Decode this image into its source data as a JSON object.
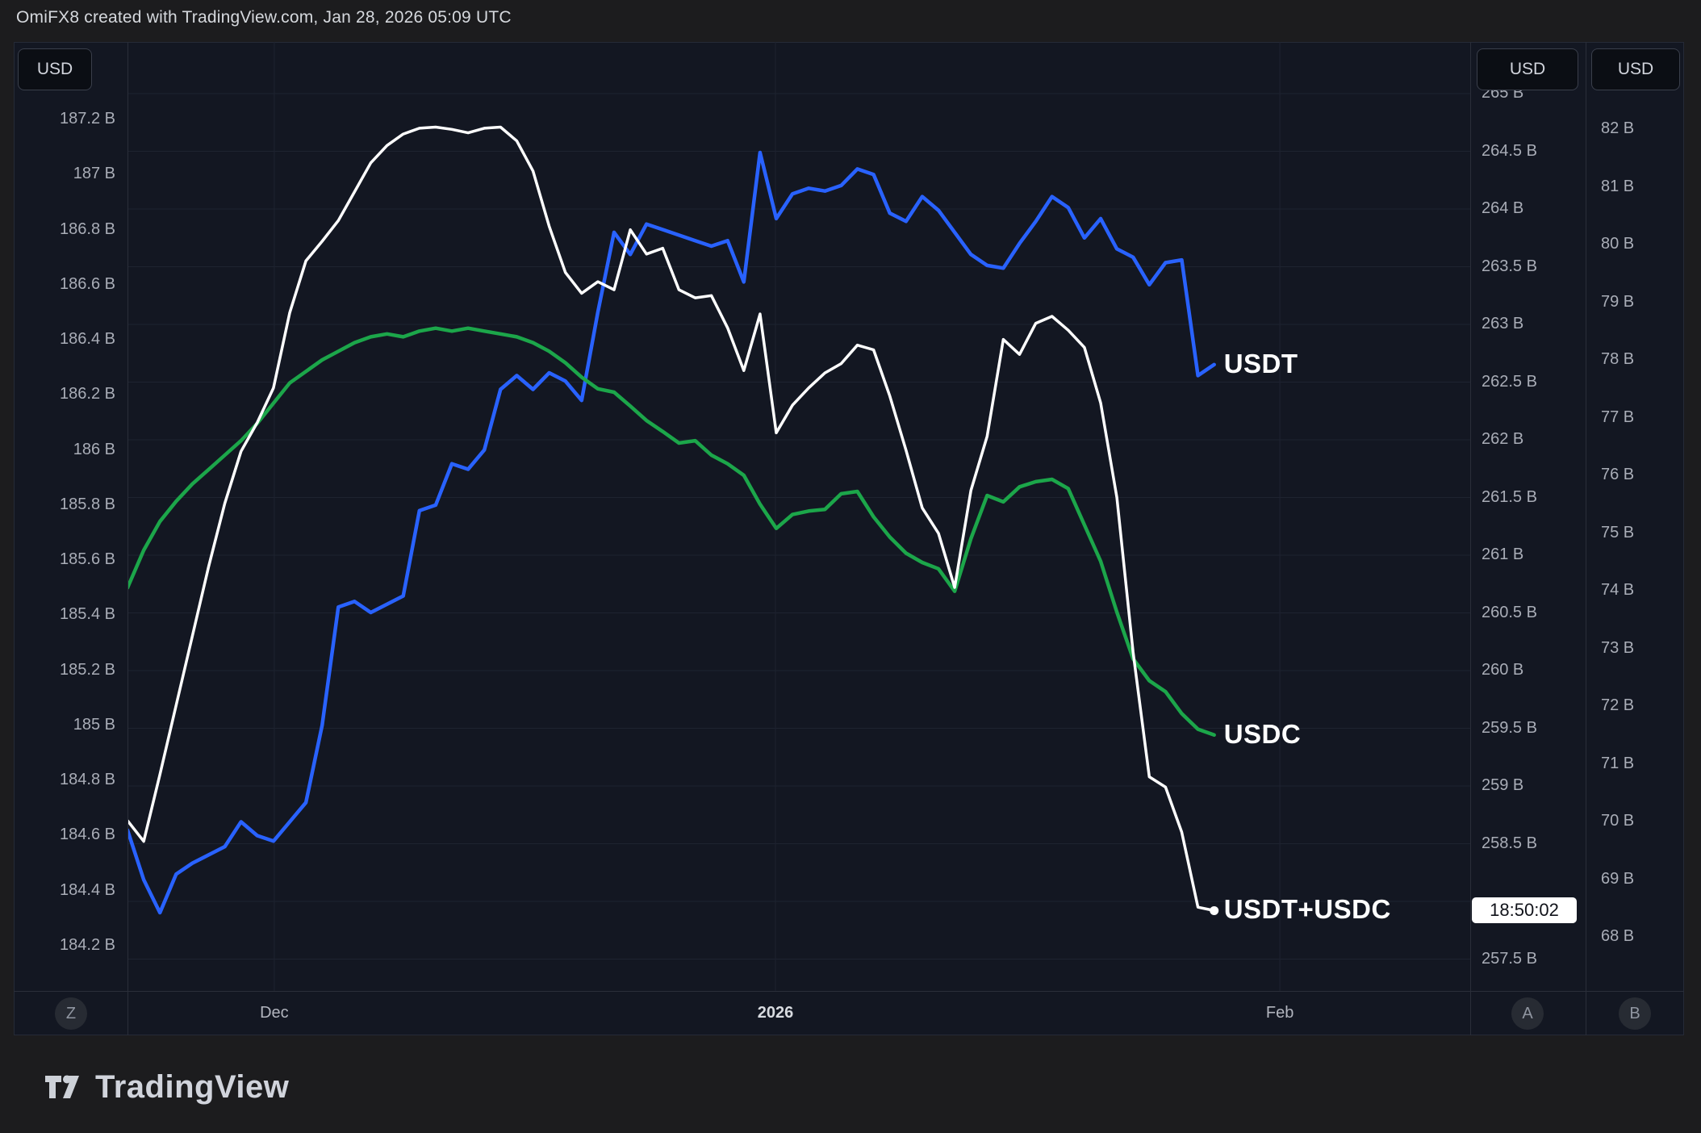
{
  "header": {
    "title": "OmiFX8 created with TradingView.com, Jan 28, 2026 05:09 UTC"
  },
  "axis_buttons": {
    "left": "USD",
    "mid_right": "USD",
    "far_right": "USD"
  },
  "toolbar_buttons": {
    "left": "Z",
    "mid_right": "A",
    "far_right": "B"
  },
  "time_badge": {
    "text": "18:50:02"
  },
  "branding": {
    "name": "TradingView"
  },
  "colors": {
    "chart_bg": "#131722",
    "outer_bg": "#1c1c1e",
    "grid": "#1e2330",
    "border": "#2a2e39",
    "usdt": "#2962ff",
    "usdc": "#1ca64a",
    "sum": "#ffffff",
    "axis_text": "#a9adb7",
    "badge_bg": "#ffffff"
  },
  "chart_data": {
    "type": "line",
    "title": "OmiFX8 created with TradingView.com, Jan 28, 2026 05:09 UTC",
    "x_unit": "days",
    "grid": {
      "horizontal_from_axis": "mid_right",
      "vertical_at_days": [
        9.05,
        39.95,
        71.05
      ]
    },
    "time_ticks": [
      {
        "label": "Dec",
        "day": 9.05,
        "major": false
      },
      {
        "label": "2026",
        "day": 39.95,
        "major": true
      },
      {
        "label": "Feb",
        "day": 71.05,
        "major": false
      }
    ],
    "axes": {
      "left": {
        "unit": "USD",
        "min": 184.2,
        "max": 187.2,
        "ticks": [
          {
            "v": 187.2,
            "label": "187.2 B"
          },
          {
            "v": 187.0,
            "label": "187 B"
          },
          {
            "v": 186.8,
            "label": "186.8 B"
          },
          {
            "v": 186.6,
            "label": "186.6 B"
          },
          {
            "v": 186.4,
            "label": "186.4 B"
          },
          {
            "v": 186.2,
            "label": "186.2 B"
          },
          {
            "v": 186.0,
            "label": "186 B"
          },
          {
            "v": 185.8,
            "label": "185.8 B"
          },
          {
            "v": 185.6,
            "label": "185.6 B"
          },
          {
            "v": 185.4,
            "label": "185.4 B"
          },
          {
            "v": 185.2,
            "label": "185.2 B"
          },
          {
            "v": 185.0,
            "label": "185 B"
          },
          {
            "v": 184.8,
            "label": "184.8 B"
          },
          {
            "v": 184.6,
            "label": "184.6 B"
          },
          {
            "v": 184.4,
            "label": "184.4 B"
          },
          {
            "v": 184.2,
            "label": "184.2 B"
          }
        ]
      },
      "mid_right": {
        "unit": "USD",
        "min": 257.5,
        "max": 265.0,
        "ticks": [
          {
            "v": 265.0,
            "label": "265 B"
          },
          {
            "v": 264.5,
            "label": "264.5 B"
          },
          {
            "v": 264.0,
            "label": "264 B"
          },
          {
            "v": 263.5,
            "label": "263.5 B"
          },
          {
            "v": 263.0,
            "label": "263 B"
          },
          {
            "v": 262.5,
            "label": "262.5 B"
          },
          {
            "v": 262.0,
            "label": "262 B"
          },
          {
            "v": 261.5,
            "label": "261.5 B"
          },
          {
            "v": 261.0,
            "label": "261 B"
          },
          {
            "v": 260.5,
            "label": "260.5 B"
          },
          {
            "v": 260.0,
            "label": "260 B"
          },
          {
            "v": 259.5,
            "label": "259.5 B"
          },
          {
            "v": 259.0,
            "label": "259 B"
          },
          {
            "v": 258.5,
            "label": "258.5 B"
          },
          {
            "v": 257.5,
            "label": "257.5 B"
          }
        ],
        "badge_value": 258.0
      },
      "far_right": {
        "unit": "USD",
        "min": 68,
        "max": 82,
        "ticks": [
          {
            "v": 82,
            "label": "82 B"
          },
          {
            "v": 81,
            "label": "81 B"
          },
          {
            "v": 80,
            "label": "80 B"
          },
          {
            "v": 79,
            "label": "79 B"
          },
          {
            "v": 78,
            "label": "78 B"
          },
          {
            "v": 77,
            "label": "77 B"
          },
          {
            "v": 76,
            "label": "76 B"
          },
          {
            "v": 75,
            "label": "75 B"
          },
          {
            "v": 74,
            "label": "74 B"
          },
          {
            "v": 73,
            "label": "73 B"
          },
          {
            "v": 72,
            "label": "72 B"
          },
          {
            "v": 71,
            "label": "71 B"
          },
          {
            "v": 70,
            "label": "70 B"
          },
          {
            "v": 69,
            "label": "69 B"
          },
          {
            "v": 68,
            "label": "68 B"
          }
        ]
      }
    },
    "series": [
      {
        "name": "USDT",
        "axis": "left",
        "color": "#2962ff",
        "width": 4.5,
        "end_dot": false,
        "values": [
          184.62,
          184.44,
          184.32,
          184.46,
          184.5,
          184.53,
          184.56,
          184.65,
          184.6,
          184.58,
          184.65,
          184.72,
          185.0,
          185.43,
          185.45,
          185.41,
          185.44,
          185.47,
          185.78,
          185.8,
          185.95,
          185.93,
          186.0,
          186.22,
          186.27,
          186.22,
          186.28,
          186.25,
          186.18,
          186.5,
          186.79,
          186.71,
          186.82,
          186.8,
          186.78,
          186.76,
          186.74,
          186.76,
          186.61,
          187.08,
          186.84,
          186.93,
          186.95,
          186.94,
          186.96,
          187.02,
          187.0,
          186.86,
          186.83,
          186.92,
          186.87,
          186.79,
          186.71,
          186.67,
          186.66,
          186.75,
          186.83,
          186.92,
          186.88,
          186.77,
          186.84,
          186.73,
          186.7,
          186.6,
          186.68,
          186.69,
          186.27,
          186.31
        ]
      },
      {
        "name": "USDC",
        "axis": "far_right",
        "color": "#1ca64a",
        "width": 4.5,
        "end_dot": false,
        "values": [
          74.05,
          74.7,
          75.2,
          75.55,
          75.85,
          76.1,
          76.35,
          76.6,
          76.9,
          77.25,
          77.6,
          77.8,
          78.0,
          78.15,
          78.3,
          78.4,
          78.45,
          78.4,
          78.5,
          78.55,
          78.5,
          78.55,
          78.5,
          78.45,
          78.4,
          78.3,
          78.15,
          77.95,
          77.7,
          77.5,
          77.44,
          77.2,
          76.95,
          76.76,
          76.56,
          76.6,
          76.35,
          76.2,
          76.0,
          75.5,
          75.08,
          75.32,
          75.38,
          75.41,
          75.68,
          75.72,
          75.28,
          74.93,
          74.65,
          74.49,
          74.38,
          73.99,
          74.9,
          75.65,
          75.54,
          75.8,
          75.89,
          75.93,
          75.77,
          75.14,
          74.51,
          73.63,
          72.82,
          72.44,
          72.25,
          71.87,
          71.6,
          71.5
        ]
      },
      {
        "name": "USDT+USDC",
        "axis": "mid_right",
        "color": "#ffffff",
        "width": 3.5,
        "end_dot": true,
        "values": [
          258.7,
          258.52,
          259.1,
          259.7,
          260.3,
          260.9,
          261.45,
          261.9,
          262.15,
          262.45,
          263.1,
          263.55,
          263.72,
          263.9,
          264.15,
          264.4,
          264.55,
          264.65,
          264.7,
          264.71,
          264.69,
          264.66,
          264.7,
          264.71,
          264.59,
          264.33,
          263.85,
          263.45,
          263.27,
          263.37,
          263.3,
          263.82,
          263.61,
          263.66,
          263.3,
          263.23,
          263.25,
          262.97,
          262.6,
          263.09,
          262.06,
          262.3,
          262.45,
          262.58,
          262.66,
          262.82,
          262.78,
          262.38,
          261.91,
          261.41,
          261.19,
          260.72,
          261.56,
          262.03,
          262.87,
          262.74,
          263.01,
          263.07,
          262.95,
          262.8,
          262.32,
          261.5,
          260.16,
          259.08,
          258.99,
          258.6,
          257.95,
          257.92
        ]
      }
    ]
  }
}
